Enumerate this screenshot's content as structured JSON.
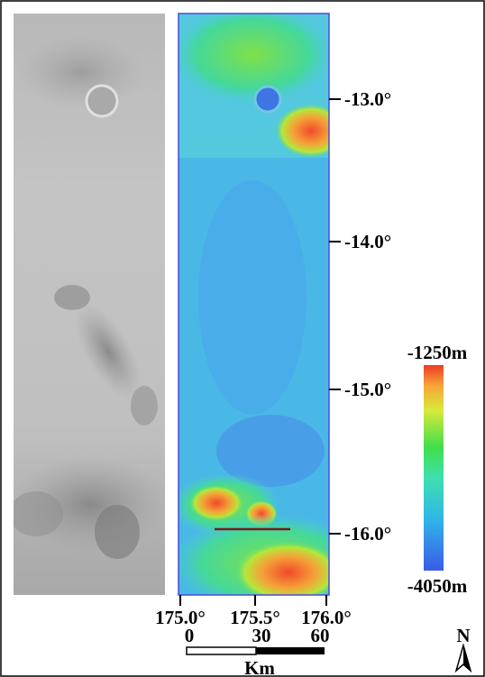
{
  "latitude_labels": [
    "-13.0°",
    "-14.0°",
    "-15.0°",
    "-16.0°"
  ],
  "longitude_labels": [
    "175.0°",
    "175.5°",
    "176.0°"
  ],
  "colorbar": {
    "max_label": "-1250m",
    "min_label": "-4050m"
  },
  "scale_bar": {
    "labels": [
      "0",
      "30",
      "60"
    ],
    "unit": "Km"
  },
  "north_label": "N"
}
